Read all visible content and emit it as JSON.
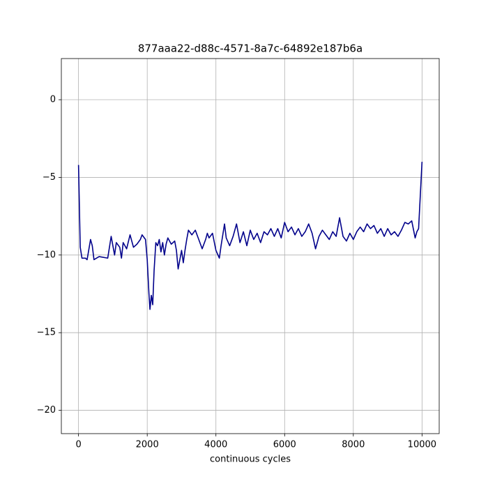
{
  "chart_data": {
    "type": "line",
    "title": "877aaa22-d88c-4571-8a7c-64892e187b6a",
    "xlabel": "continuous cycles",
    "color": "#00008b",
    "grid": true,
    "xlim": [
      -500,
      10500
    ],
    "ylim": [
      -21.5,
      2.65
    ],
    "xticks": [
      0,
      2000,
      4000,
      6000,
      8000,
      10000
    ],
    "yticks": [
      {
        "value": 0,
        "label": "0"
      },
      {
        "value": -5,
        "label": "−5"
      },
      {
        "value": -10,
        "label": "−10"
      },
      {
        "value": -15,
        "label": "−15"
      },
      {
        "value": -20,
        "label": "−20"
      }
    ],
    "x": [
      0,
      50,
      100,
      200,
      250,
      350,
      400,
      450,
      600,
      850,
      950,
      1050,
      1100,
      1200,
      1250,
      1300,
      1400,
      1500,
      1600,
      1700,
      1800,
      1850,
      1950,
      2000,
      2050,
      2080,
      2120,
      2160,
      2200,
      2250,
      2300,
      2350,
      2400,
      2450,
      2500,
      2550,
      2600,
      2700,
      2800,
      2850,
      2900,
      3000,
      3050,
      3100,
      3150,
      3200,
      3300,
      3400,
      3500,
      3600,
      3700,
      3750,
      3800,
      3900,
      4000,
      4100,
      4150,
      4250,
      4300,
      4400,
      4500,
      4600,
      4700,
      4800,
      4900,
      5000,
      5100,
      5200,
      5300,
      5400,
      5500,
      5600,
      5700,
      5800,
      5900,
      6000,
      6100,
      6200,
      6300,
      6400,
      6500,
      6600,
      6700,
      6800,
      6900,
      7000,
      7100,
      7200,
      7300,
      7400,
      7500,
      7600,
      7700,
      7800,
      7900,
      8000,
      8100,
      8200,
      8300,
      8400,
      8500,
      8600,
      8700,
      8800,
      8900,
      9000,
      9100,
      9200,
      9300,
      9400,
      9500,
      9600,
      9700,
      9800,
      9850,
      9900,
      10000
    ],
    "values": [
      -4.2,
      -9.5,
      -10.2,
      -10.2,
      -10.3,
      -9,
      -9.4,
      -10.3,
      -10.1,
      -10.2,
      -8.8,
      -10,
      -9.2,
      -9.5,
      -10.2,
      -9.2,
      -9.6,
      -8.7,
      -9.5,
      -9.3,
      -9,
      -8.7,
      -9,
      -10.3,
      -12.5,
      -13.5,
      -12.6,
      -13.2,
      -11,
      -9.2,
      -9.4,
      -9,
      -9.8,
      -9.2,
      -10,
      -9.3,
      -8.9,
      -9.3,
      -9.1,
      -9.7,
      -10.9,
      -9.7,
      -10.5,
      -9.7,
      -9,
      -8.4,
      -8.7,
      -8.4,
      -9,
      -9.6,
      -9,
      -8.6,
      -8.9,
      -8.6,
      -9.7,
      -10.2,
      -9.4,
      -8,
      -8.9,
      -9.4,
      -8.8,
      -8,
      -9.2,
      -8.5,
      -9.4,
      -8.4,
      -9,
      -8.6,
      -9.2,
      -8.5,
      -8.7,
      -8.3,
      -8.8,
      -8.3,
      -8.9,
      -7.9,
      -8.5,
      -8.2,
      -8.7,
      -8.3,
      -8.8,
      -8.5,
      -8,
      -8.6,
      -9.6,
      -8.8,
      -8.4,
      -8.7,
      -9,
      -8.5,
      -8.8,
      -7.6,
      -8.8,
      -9.1,
      -8.6,
      -9,
      -8.5,
      -8.2,
      -8.5,
      -8,
      -8.3,
      -8.1,
      -8.6,
      -8.3,
      -8.8,
      -8.3,
      -8.7,
      -8.5,
      -8.8,
      -8.4,
      -7.9,
      -8,
      -7.8,
      -8.9,
      -8.5,
      -8.3,
      -4
    ]
  }
}
